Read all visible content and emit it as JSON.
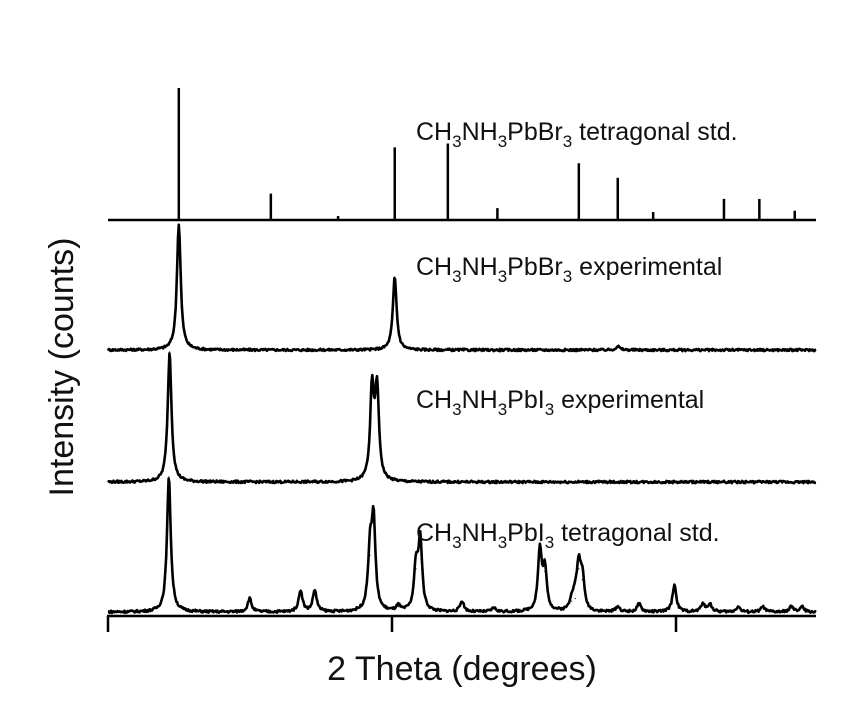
{
  "chart_data": {
    "type": "line",
    "xlabel": "2 Theta (degrees)",
    "ylabel": "Intensity (counts)",
    "x_ticks_labeled": false,
    "y_ticks_labeled": false,
    "grid": false,
    "legend": "none (series names written above each trace, right side)",
    "color": "#000000",
    "series": [
      {
        "name_parts": [
          "CH",
          "3",
          "NH",
          "3",
          "PbBr",
          "3",
          " tetragonal std."
        ],
        "style": "stick",
        "x": [
          0.1,
          0.23,
          0.325,
          0.405,
          0.48,
          0.55,
          0.665,
          0.72,
          0.77,
          0.87,
          0.92,
          0.97
        ],
        "y": [
          1.0,
          0.2,
          0.03,
          0.55,
          0.58,
          0.09,
          0.43,
          0.32,
          0.06,
          0.16,
          0.16,
          0.07
        ]
      },
      {
        "name_parts": [
          "CH",
          "3",
          "NH",
          "3",
          "PbBr",
          "3",
          " experimental"
        ],
        "style": "line",
        "peaks": [
          {
            "x": 0.1,
            "y": 1.0
          },
          {
            "x": 0.405,
            "y": 0.58
          },
          {
            "x": 0.72,
            "y": 0.03
          }
        ]
      },
      {
        "name_parts": [
          "CH",
          "3",
          "NH",
          "3",
          "PbI",
          "3",
          " experimental"
        ],
        "style": "line",
        "peaks": [
          {
            "x": 0.087,
            "y": 1.0
          },
          {
            "x": 0.373,
            "y": 0.7
          },
          {
            "x": 0.38,
            "y": 0.7
          }
        ]
      },
      {
        "name_parts": [
          "CH",
          "3",
          "NH",
          "3",
          "PbI",
          "3",
          " tetragonal std."
        ],
        "style": "line",
        "peaks": [
          {
            "x": 0.086,
            "y": 1.0
          },
          {
            "x": 0.2,
            "y": 0.1
          },
          {
            "x": 0.272,
            "y": 0.16
          },
          {
            "x": 0.292,
            "y": 0.16
          },
          {
            "x": 0.37,
            "y": 0.42
          },
          {
            "x": 0.375,
            "y": 0.66
          },
          {
            "x": 0.41,
            "y": 0.04
          },
          {
            "x": 0.435,
            "y": 0.32
          },
          {
            "x": 0.441,
            "y": 0.52
          },
          {
            "x": 0.5,
            "y": 0.08
          },
          {
            "x": 0.545,
            "y": 0.03
          },
          {
            "x": 0.61,
            "y": 0.45
          },
          {
            "x": 0.617,
            "y": 0.3
          },
          {
            "x": 0.655,
            "y": 0.08
          },
          {
            "x": 0.66,
            "y": 0.1
          },
          {
            "x": 0.665,
            "y": 0.32
          },
          {
            "x": 0.67,
            "y": 0.24
          },
          {
            "x": 0.72,
            "y": 0.04
          },
          {
            "x": 0.75,
            "y": 0.06
          },
          {
            "x": 0.8,
            "y": 0.2
          },
          {
            "x": 0.84,
            "y": 0.06
          },
          {
            "x": 0.85,
            "y": 0.06
          },
          {
            "x": 0.89,
            "y": 0.04
          },
          {
            "x": 0.925,
            "y": 0.04
          },
          {
            "x": 0.965,
            "y": 0.04
          },
          {
            "x": 0.98,
            "y": 0.04
          }
        ]
      }
    ]
  }
}
